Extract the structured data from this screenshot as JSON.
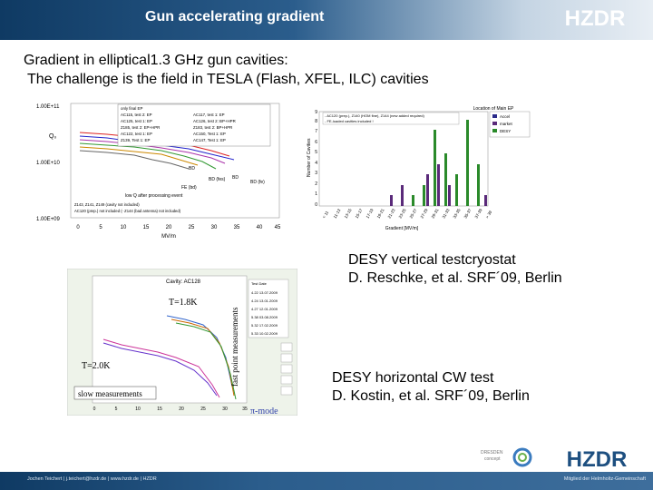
{
  "header": {
    "title": "Gun accelerating gradient",
    "logo_text": "HZDR"
  },
  "headline": {
    "line1": "Gradient in elliptical1.3 GHz gun cavities:",
    "line2": "The challenge is the field in TESLA (Flash, XFEL, ILC) cavities"
  },
  "figure1": {
    "y_ticks": [
      "1.00E+11",
      "1.00E+10",
      "1.00E+09"
    ],
    "x_ticks": [
      "0",
      "5",
      "10",
      "15",
      "20",
      "25",
      "30",
      "35",
      "40",
      "45"
    ],
    "x_unit": "MV/m",
    "y_label": "Q₀",
    "legend": [
      "only final EP",
      "AC115, test 2: EP",
      "AC117, test 1: EP",
      "AC125, test 1: EP",
      "AC126, test 2: BP+HPR",
      "Z185, test 2: EP+HPR",
      "Z183, test 2: BP+HPR",
      "AC122, test 1: EP",
      "AC150, Test 1: EP",
      "Z139, Test 1: EP",
      "AC147, Test 1: EP"
    ],
    "annotations": [
      "BD",
      "BD (fes)",
      "FE (bd)",
      "BD",
      "BD (fe)",
      "low Q after processing event"
    ],
    "notes": [
      "Z143, Z141, Z149 (cavity not included)",
      "AC120 (prep.) not included (- Z144 (bad antenna) not included)"
    ]
  },
  "figure2": {
    "title": "Location of Main EP",
    "y_label": "Number of Cavities",
    "x_label": "Gradient [MV/m]",
    "y_ticks": [
      "0",
      "1",
      "2",
      "3",
      "4",
      "5",
      "6",
      "7",
      "8",
      "9"
    ],
    "x_ticks": [
      "< 11",
      "11-13",
      "13-15",
      "15-17",
      "17-19",
      "19-21",
      "21-23",
      "23-25",
      "25-27",
      "27-29",
      "29-31",
      "31-33",
      "33-35",
      "35-37",
      "37-39",
      "> 39"
    ],
    "legend": [
      "Accel",
      "market",
      "DESY"
    ],
    "notes": [
      "- AC120 (prep.), Z140 (HOM fine), Z144 (new added required)",
      "- FE-loaded cavities included !"
    ]
  },
  "figure3": {
    "cavity_label": "Cavity: AC128",
    "table_header": "Test Date",
    "tests": [
      "4.22 13.07.2009",
      "4.24 13.01.2009",
      "4.27 12.01.2009",
      "5.38 03.08.2009",
      "5.32 17.02.2009",
      "5.33 10.02.2009"
    ],
    "annotations": [
      "T=1.8K",
      "T=2.0K",
      "slow measurements",
      "fast point measurements",
      "π-mode"
    ],
    "x_ticks": [
      "0",
      "5",
      "10",
      "15",
      "20",
      "25",
      "30",
      "35"
    ]
  },
  "captions": {
    "cap1_line1": "DESY vertical testcryostat",
    "cap1_line2": "D. Reschke, et al. SRF´09, Berlin",
    "cap2_line1": "DESY  horizontal CW test",
    "cap2_line2": "D. Kostin, et al. SRF´09, Berlin"
  },
  "footer": {
    "left": "Jochen Teichert | j.teichert@hzdr.de | www.hzdr.de | HZDR",
    "right": "Mitglied der Helmholtz-Gemeinschaft",
    "dresden_line1": "DRESDEN",
    "dresden_line2": "concept"
  },
  "colors": {
    "header_dark": "#0f3a63",
    "header_light": "#c4d4e3",
    "green_bar": "#2a8a2a",
    "purple_bar": "#5a2a7a"
  }
}
